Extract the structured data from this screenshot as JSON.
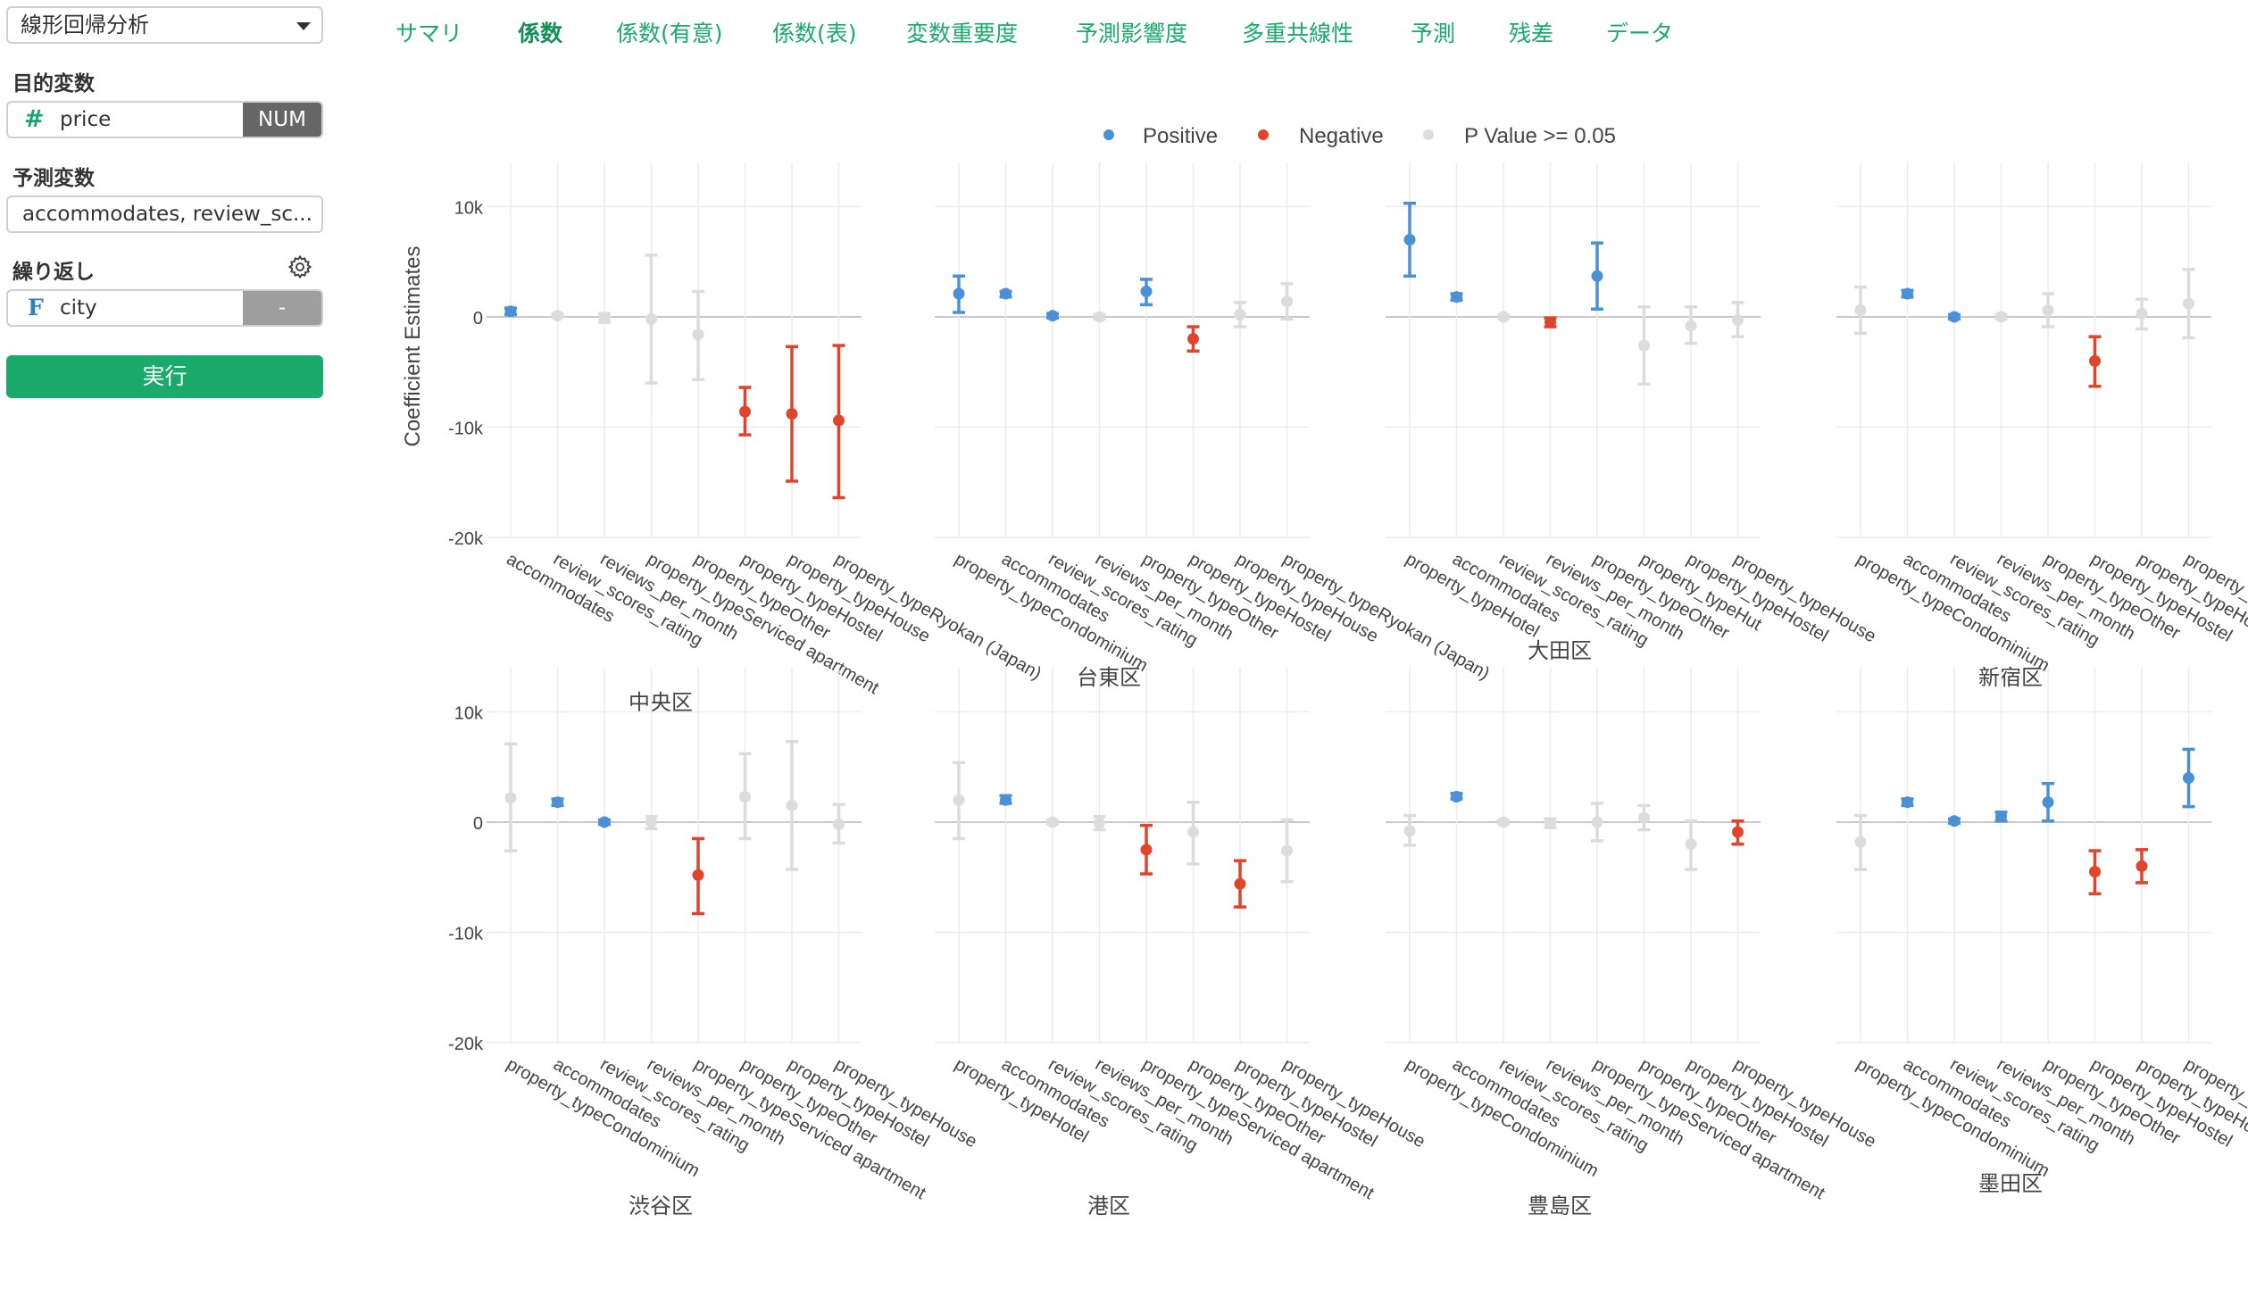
{
  "sidebar": {
    "analysis_type": "線形回帰分析",
    "target_label": "目的変数",
    "target_value": "price",
    "target_badge": "NUM",
    "predictor_label": "予測変数",
    "predictor_value": "accommodates, review_sc...",
    "repeat_label": "繰り返し",
    "repeat_value": "city",
    "repeat_badge": "-",
    "run_label": "実行",
    "hash_symbol": "#",
    "f_symbol": "F"
  },
  "tabs": [
    {
      "label": "サマリ",
      "active": false
    },
    {
      "label": "係数",
      "active": true
    },
    {
      "label": "係数(有意)",
      "active": false
    },
    {
      "label": "係数(表)",
      "active": false
    },
    {
      "label": "変数重要度",
      "active": false
    },
    {
      "label": "予測影響度",
      "active": false
    },
    {
      "label": "多重共線性",
      "active": false
    },
    {
      "label": "予測",
      "active": false
    },
    {
      "label": "残差",
      "active": false
    },
    {
      "label": "データ",
      "active": false
    }
  ],
  "chart_data": {
    "type": "scatter",
    "subtype": "errorbar",
    "ylabel": "Coefficient Estimates",
    "ylim": [
      -20000,
      14000
    ],
    "yticks": [
      10000,
      0,
      -10000,
      -20000
    ],
    "ytick_labels": [
      "10k",
      "0",
      "-10k",
      "-20k"
    ],
    "legend": [
      {
        "name": "Positive",
        "color": "#4a90d9"
      },
      {
        "name": "Negative",
        "color": "#e0442b"
      },
      {
        "name": "P Value >= 0.05",
        "color": "#dcdcdc"
      }
    ],
    "legend_position": "top",
    "grid": true,
    "panels": [
      {
        "title": "中央区",
        "terms": [
          {
            "term": "accommodates",
            "estimate": 500,
            "low": 200,
            "high": 800,
            "sig": "pos"
          },
          {
            "term": "review_scores_rating",
            "estimate": 100,
            "low": -50,
            "high": 250,
            "sig": "ns"
          },
          {
            "term": "reviews_per_month",
            "estimate": -100,
            "low": -500,
            "high": 300,
            "sig": "ns"
          },
          {
            "term": "property_typeServiced apartment",
            "estimate": -200,
            "low": -6000,
            "high": 5600,
            "sig": "ns"
          },
          {
            "term": "property_typeOther",
            "estimate": -1600,
            "low": -5700,
            "high": 2300,
            "sig": "ns"
          },
          {
            "term": "property_typeHostel",
            "estimate": -8600,
            "low": -10700,
            "high": -6400,
            "sig": "neg"
          },
          {
            "term": "property_typeHouse",
            "estimate": -8800,
            "low": -14900,
            "high": -2700,
            "sig": "neg"
          },
          {
            "term": "property_typeRyokan (Japan)",
            "estimate": -9400,
            "low": -16400,
            "high": -2600,
            "sig": "neg"
          }
        ]
      },
      {
        "title": "台東区",
        "terms": [
          {
            "term": "property_typeCondominium",
            "estimate": 2100,
            "low": 400,
            "high": 3700,
            "sig": "pos"
          },
          {
            "term": "accommodates",
            "estimate": 2100,
            "low": 1800,
            "high": 2300,
            "sig": "pos"
          },
          {
            "term": "review_scores_rating",
            "estimate": 100,
            "low": -100,
            "high": 300,
            "sig": "pos"
          },
          {
            "term": "reviews_per_month",
            "estimate": 0,
            "low": -200,
            "high": 200,
            "sig": "ns"
          },
          {
            "term": "property_typeOther",
            "estimate": 2300,
            "low": 1100,
            "high": 3400,
            "sig": "pos"
          },
          {
            "term": "property_typeHostel",
            "estimate": -2000,
            "low": -3100,
            "high": -900,
            "sig": "neg"
          },
          {
            "term": "property_typeHouse",
            "estimate": 200,
            "low": -900,
            "high": 1300,
            "sig": "ns"
          },
          {
            "term": "property_typeRyokan (Japan)",
            "estimate": 1400,
            "low": -200,
            "high": 3000,
            "sig": "ns"
          }
        ]
      },
      {
        "title": "大田区",
        "terms": [
          {
            "term": "property_typeHotel",
            "estimate": 7000,
            "low": 3700,
            "high": 10300,
            "sig": "pos"
          },
          {
            "term": "accommodates",
            "estimate": 1800,
            "low": 1500,
            "high": 2100,
            "sig": "pos"
          },
          {
            "term": "review_scores_rating",
            "estimate": 0,
            "low": -150,
            "high": 150,
            "sig": "ns"
          },
          {
            "term": "reviews_per_month",
            "estimate": -500,
            "low": -900,
            "high": -100,
            "sig": "neg"
          },
          {
            "term": "property_typeOther",
            "estimate": 3700,
            "low": 700,
            "high": 6700,
            "sig": "pos"
          },
          {
            "term": "property_typeHut",
            "estimate": -2600,
            "low": -6100,
            "high": 900,
            "sig": "ns"
          },
          {
            "term": "property_typeHostel",
            "estimate": -800,
            "low": -2400,
            "high": 900,
            "sig": "ns"
          },
          {
            "term": "property_typeHouse",
            "estimate": -300,
            "low": -1800,
            "high": 1300,
            "sig": "ns"
          }
        ]
      },
      {
        "title": "新宿区",
        "terms": [
          {
            "term": "property_typeCondominium",
            "estimate": 600,
            "low": -1500,
            "high": 2700,
            "sig": "ns"
          },
          {
            "term": "accommodates",
            "estimate": 2100,
            "low": 1800,
            "high": 2400,
            "sig": "pos"
          },
          {
            "term": "review_scores_rating",
            "estimate": 0,
            "low": -200,
            "high": 200,
            "sig": "pos"
          },
          {
            "term": "reviews_per_month",
            "estimate": 0,
            "low": -200,
            "high": 200,
            "sig": "ns"
          },
          {
            "term": "property_typeOther",
            "estimate": 600,
            "low": -900,
            "high": 2100,
            "sig": "ns"
          },
          {
            "term": "property_typeHostel",
            "estimate": -4000,
            "low": -6300,
            "high": -1800,
            "sig": "neg"
          },
          {
            "term": "property_typeHouse",
            "estimate": 300,
            "low": -1100,
            "high": 1600,
            "sig": "ns"
          },
          {
            "term": "property_typeHotel",
            "estimate": 1200,
            "low": -1900,
            "high": 4300,
            "sig": "ns"
          }
        ]
      },
      {
        "title": "渋谷区",
        "terms": [
          {
            "term": "property_typeCondominium",
            "estimate": 2200,
            "low": -2600,
            "high": 7100,
            "sig": "ns"
          },
          {
            "term": "accommodates",
            "estimate": 1800,
            "low": 1500,
            "high": 2100,
            "sig": "pos"
          },
          {
            "term": "review_scores_rating",
            "estimate": 0,
            "low": -200,
            "high": 200,
            "sig": "pos"
          },
          {
            "term": "reviews_per_month",
            "estimate": 0,
            "low": -600,
            "high": 500,
            "sig": "ns"
          },
          {
            "term": "property_typeServiced apartment",
            "estimate": -4800,
            "low": -8300,
            "high": -1500,
            "sig": "neg"
          },
          {
            "term": "property_typeOther",
            "estimate": 2300,
            "low": -1500,
            "high": 6200,
            "sig": "ns"
          },
          {
            "term": "property_typeHostel",
            "estimate": 1500,
            "low": -4300,
            "high": 7300,
            "sig": "ns"
          },
          {
            "term": "property_typeHouse",
            "estimate": -200,
            "low": -1900,
            "high": 1600,
            "sig": "ns"
          }
        ]
      },
      {
        "title": "港区",
        "terms": [
          {
            "term": "property_typeHotel",
            "estimate": 2000,
            "low": -1500,
            "high": 5400,
            "sig": "ns"
          },
          {
            "term": "accommodates",
            "estimate": 2000,
            "low": 1700,
            "high": 2400,
            "sig": "pos"
          },
          {
            "term": "review_scores_rating",
            "estimate": 0,
            "low": -150,
            "high": 150,
            "sig": "ns"
          },
          {
            "term": "reviews_per_month",
            "estimate": -100,
            "low": -700,
            "high": 500,
            "sig": "ns"
          },
          {
            "term": "property_typeServiced apartment",
            "estimate": -2500,
            "low": -4700,
            "high": -300,
            "sig": "neg"
          },
          {
            "term": "property_typeOther",
            "estimate": -900,
            "low": -3800,
            "high": 1800,
            "sig": "ns"
          },
          {
            "term": "property_typeHostel",
            "estimate": -5600,
            "low": -7700,
            "high": -3500,
            "sig": "neg"
          },
          {
            "term": "property_typeHouse",
            "estimate": -2600,
            "low": -5400,
            "high": 200,
            "sig": "ns"
          }
        ]
      },
      {
        "title": "豊島区",
        "terms": [
          {
            "term": "property_typeCondominium",
            "estimate": -800,
            "low": -2100,
            "high": 600,
            "sig": "ns"
          },
          {
            "term": "accommodates",
            "estimate": 2300,
            "low": 2100,
            "high": 2600,
            "sig": "pos"
          },
          {
            "term": "review_scores_rating",
            "estimate": 0,
            "low": -150,
            "high": 150,
            "sig": "ns"
          },
          {
            "term": "reviews_per_month",
            "estimate": -100,
            "low": -500,
            "high": 300,
            "sig": "ns"
          },
          {
            "term": "property_typeServiced apartment",
            "estimate": 0,
            "low": -1700,
            "high": 1700,
            "sig": "ns"
          },
          {
            "term": "property_typeOther",
            "estimate": 400,
            "low": -700,
            "high": 1500,
            "sig": "ns"
          },
          {
            "term": "property_typeHostel",
            "estimate": -2000,
            "low": -4300,
            "high": 100,
            "sig": "ns"
          },
          {
            "term": "property_typeHouse",
            "estimate": -900,
            "low": -2000,
            "high": 100,
            "sig": "neg"
          }
        ]
      },
      {
        "title": "墨田区",
        "terms": [
          {
            "term": "property_typeCondominium",
            "estimate": -1800,
            "low": -4300,
            "high": 600,
            "sig": "ns"
          },
          {
            "term": "accommodates",
            "estimate": 1800,
            "low": 1500,
            "high": 2100,
            "sig": "pos"
          },
          {
            "term": "review_scores_rating",
            "estimate": 100,
            "low": -100,
            "high": 300,
            "sig": "pos"
          },
          {
            "term": "reviews_per_month",
            "estimate": 500,
            "low": 100,
            "high": 900,
            "sig": "pos"
          },
          {
            "term": "property_typeOther",
            "estimate": 1800,
            "low": 100,
            "high": 3500,
            "sig": "pos"
          },
          {
            "term": "property_typeHostel",
            "estimate": -4500,
            "low": -6500,
            "high": -2600,
            "sig": "neg"
          },
          {
            "term": "property_typeHouse",
            "estimate": -4000,
            "low": -5500,
            "high": -2500,
            "sig": "neg"
          },
          {
            "term": "property_typeHotel",
            "estimate": 4000,
            "low": 1400,
            "high": 6600,
            "sig": "pos"
          }
        ]
      }
    ]
  }
}
